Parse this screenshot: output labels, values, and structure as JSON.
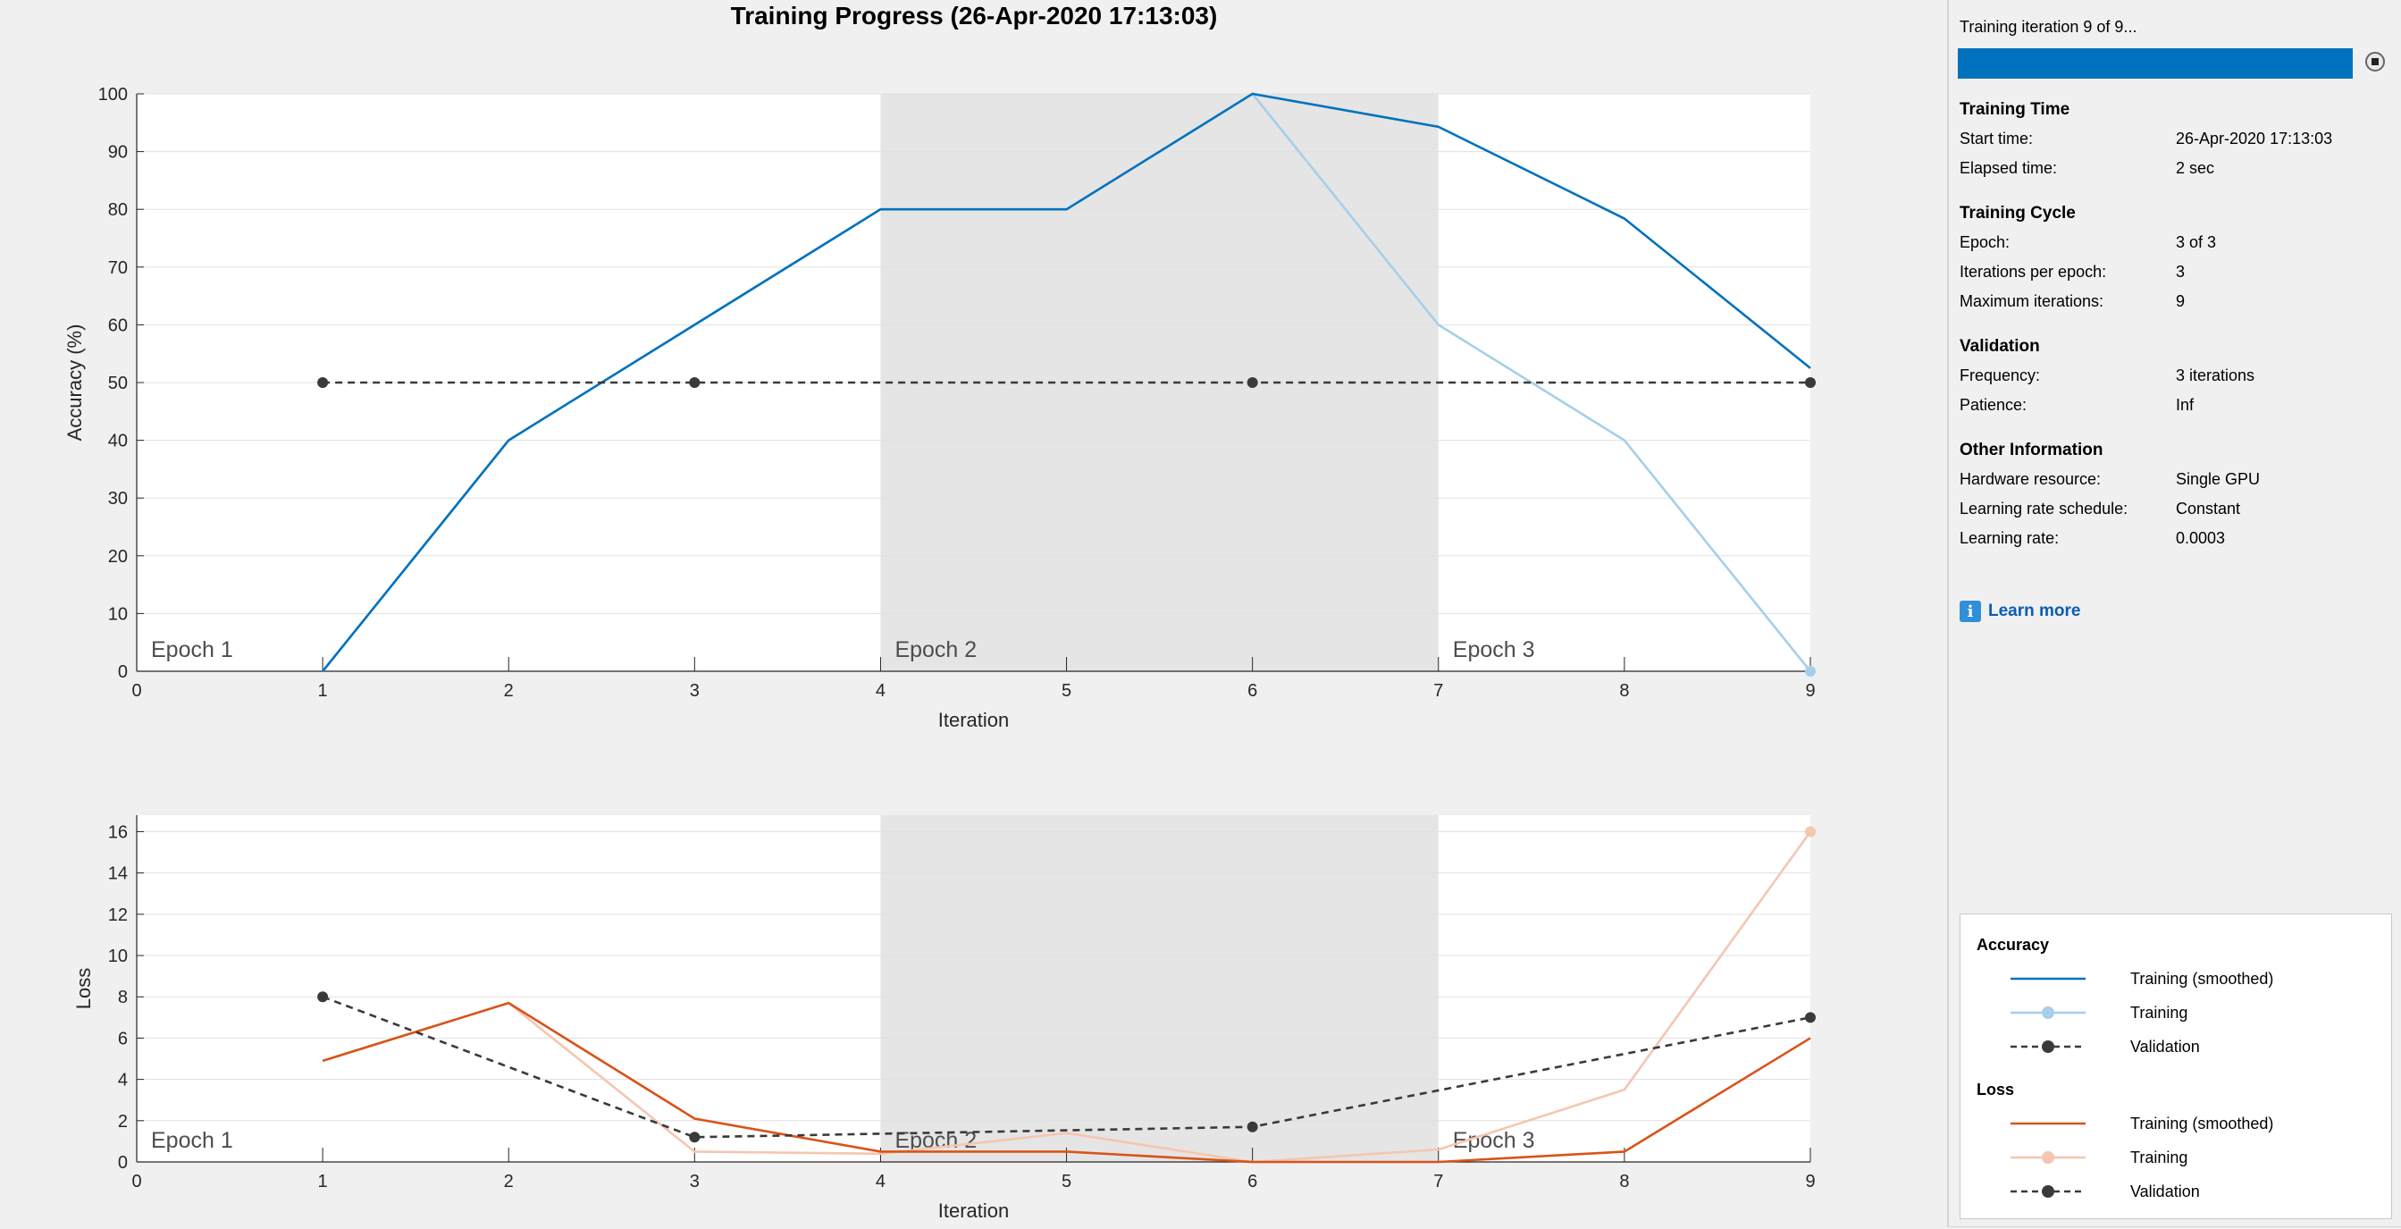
{
  "figure_title": "Training Progress (26-Apr-2020 17:13:03)",
  "panel": {
    "progress_text": "Training iteration 9 of 9...",
    "progress_fraction": 1.0,
    "stop_icon": "stop-icon",
    "sections": [
      {
        "heading": "Training Time",
        "rows": [
          {
            "label": "Start time:",
            "value": "26-Apr-2020 17:13:03"
          },
          {
            "label": "Elapsed time:",
            "value": "2 sec"
          }
        ]
      },
      {
        "heading": "Training Cycle",
        "rows": [
          {
            "label": "Epoch:",
            "value": "3 of 3"
          },
          {
            "label": "Iterations per epoch:",
            "value": "3"
          },
          {
            "label": "Maximum iterations:",
            "value": "9"
          }
        ]
      },
      {
        "heading": "Validation",
        "rows": [
          {
            "label": "Frequency:",
            "value": "3 iterations"
          },
          {
            "label": "Patience:",
            "value": "Inf"
          }
        ]
      },
      {
        "heading": "Other Information",
        "rows": [
          {
            "label": "Hardware resource:",
            "value": "Single GPU"
          },
          {
            "label": "Learning rate schedule:",
            "value": "Constant"
          },
          {
            "label": "Learning rate:",
            "value": "0.0003"
          }
        ]
      }
    ],
    "learn_more": {
      "icon": "info-icon",
      "icon_glyph": "i",
      "label": "Learn more"
    },
    "legend": {
      "groups": [
        {
          "title": "Accuracy",
          "entries": [
            {
              "label": "Training (smoothed)",
              "color": "#0072bd",
              "style": "solid",
              "marker": false
            },
            {
              "label": "Training",
              "color": "#a6cfe9",
              "style": "solid",
              "marker": true
            },
            {
              "label": "Validation",
              "color": "#3a3a3a",
              "style": "dashed",
              "marker": true
            }
          ]
        },
        {
          "title": "Loss",
          "entries": [
            {
              "label": "Training (smoothed)",
              "color": "#d95319",
              "style": "solid",
              "marker": false
            },
            {
              "label": "Training",
              "color": "#f5c6b0",
              "style": "solid",
              "marker": true
            },
            {
              "label": "Validation",
              "color": "#3a3a3a",
              "style": "dashed",
              "marker": true
            }
          ]
        }
      ]
    }
  },
  "chart_data": [
    {
      "type": "line",
      "title": "",
      "xlabel": "Iteration",
      "ylabel": "Accuracy (%)",
      "xlim": [
        0,
        9
      ],
      "ylim": [
        0,
        100
      ],
      "xticks": [
        0,
        1,
        2,
        3,
        4,
        5,
        6,
        7,
        8,
        9
      ],
      "yticks": [
        0,
        10,
        20,
        30,
        40,
        50,
        60,
        70,
        80,
        90,
        100
      ],
      "grid": true,
      "epochs": [
        {
          "label": "Epoch 1",
          "start": 0,
          "end": 4,
          "shaded": false
        },
        {
          "label": "Epoch 2",
          "start": 4,
          "end": 7,
          "shaded": true
        },
        {
          "label": "Epoch 3",
          "start": 7,
          "end": 9,
          "shaded": false
        }
      ],
      "series": [
        {
          "name": "Training",
          "color": "#a6cfe9",
          "style": "solid",
          "x": [
            1,
            2,
            3,
            4,
            5,
            6,
            7,
            8,
            9
          ],
          "y": [
            0,
            40,
            60,
            80,
            80,
            100,
            60,
            40,
            0
          ],
          "marker_last": true
        },
        {
          "name": "Training (smoothed)",
          "color": "#0072bd",
          "style": "solid",
          "x": [
            1,
            2,
            3,
            4,
            5,
            6,
            7,
            8,
            9
          ],
          "y": [
            0,
            40,
            60,
            80,
            80,
            100,
            94.3,
            78.4,
            52.5
          ]
        },
        {
          "name": "Validation",
          "color": "#3a3a3a",
          "style": "dashed",
          "x": [
            1,
            3,
            6,
            9
          ],
          "y": [
            50,
            50,
            50,
            50
          ],
          "markers": true
        }
      ]
    },
    {
      "type": "line",
      "title": "",
      "xlabel": "Iteration",
      "ylabel": "Loss",
      "xlim": [
        0,
        9
      ],
      "ylim": [
        0,
        16.8
      ],
      "xticks": [
        0,
        1,
        2,
        3,
        4,
        5,
        6,
        7,
        8,
        9
      ],
      "yticks": [
        0,
        2,
        4,
        6,
        8,
        10,
        12,
        14,
        16
      ],
      "grid": true,
      "epochs": [
        {
          "label": "Epoch 1",
          "start": 0,
          "end": 4,
          "shaded": false
        },
        {
          "label": "Epoch 2",
          "start": 4,
          "end": 7,
          "shaded": true
        },
        {
          "label": "Epoch 3",
          "start": 7,
          "end": 9,
          "shaded": false
        }
      ],
      "series": [
        {
          "name": "Training",
          "color": "#f5c6b0",
          "style": "solid",
          "x": [
            1,
            2,
            3,
            4,
            5,
            6,
            7,
            8,
            9
          ],
          "y": [
            4.9,
            7.7,
            0.5,
            0.4,
            1.4,
            0,
            0.6,
            3.5,
            16
          ],
          "marker_last": true
        },
        {
          "name": "Training (smoothed)",
          "color": "#d95319",
          "style": "solid",
          "x": [
            1,
            2,
            3,
            4,
            5,
            6,
            7,
            8,
            9
          ],
          "y": [
            4.9,
            7.7,
            2.1,
            0.5,
            0.5,
            0,
            0,
            0.5,
            6.0
          ]
        },
        {
          "name": "Validation",
          "color": "#3a3a3a",
          "style": "dashed",
          "x": [
            1,
            3,
            6,
            9
          ],
          "y": [
            8,
            1.2,
            1.7,
            7
          ],
          "markers": true
        }
      ]
    }
  ]
}
